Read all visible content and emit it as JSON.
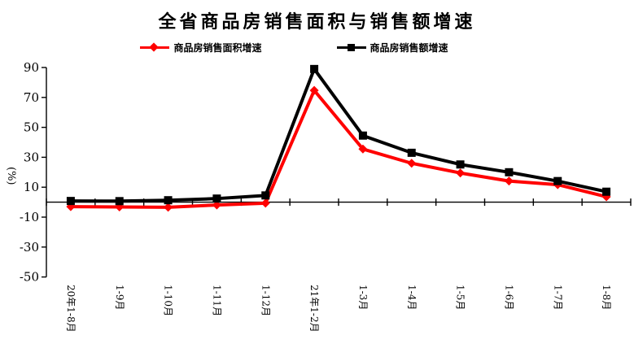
{
  "chart_data": {
    "type": "line",
    "title": "全省商品房销售面积与销售额增速",
    "ylabel": "(%)",
    "ylim": [
      -50,
      90
    ],
    "yticks": [
      90,
      70,
      50,
      30,
      10,
      -10,
      -30,
      -50
    ],
    "grid": false,
    "legend_position": "top",
    "background": "#ffffff",
    "axis_color": "#000000",
    "categories": [
      "20年1-8月",
      "1-9月",
      "1-10月",
      "1-11月",
      "1-12月",
      "21年1-2月",
      "1-3月",
      "1-4月",
      "1-5月",
      "1-6月",
      "1-7月",
      "1-8月"
    ],
    "series": [
      {
        "name": "商品房销售面积增速",
        "color": "#ff0000",
        "marker": "diamond",
        "values": [
          -3.0,
          -3.2,
          -3.4,
          -1.9,
          -0.7,
          74.7,
          35.5,
          26.0,
          19.5,
          14.1,
          11.7,
          3.6
        ]
      },
      {
        "name": "商品房销售额增速",
        "color": "#000000",
        "marker": "square",
        "values": [
          0.8,
          0.7,
          1.3,
          2.4,
          4.5,
          89.0,
          44.5,
          33.0,
          25.2,
          20.0,
          14.1,
          7.0
        ]
      }
    ]
  }
}
